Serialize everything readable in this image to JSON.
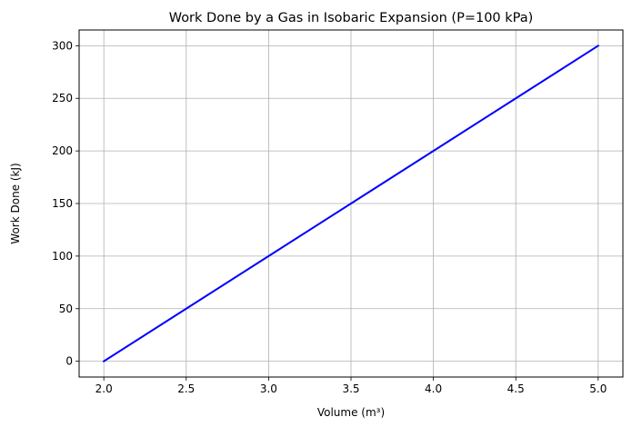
{
  "chart_data": {
    "type": "line",
    "title": "Work Done by a Gas in Isobaric Expansion (P=100 kPa)",
    "xlabel": "Volume (m³)",
    "ylabel": "Work Done (kJ)",
    "xlim": [
      1.85,
      5.15
    ],
    "ylim": [
      -15,
      315
    ],
    "xticks": [
      2.0,
      2.5,
      3.0,
      3.5,
      4.0,
      4.5,
      5.0
    ],
    "xtick_labels": [
      "2.0",
      "2.5",
      "3.0",
      "3.5",
      "4.0",
      "4.5",
      "5.0"
    ],
    "yticks": [
      0,
      50,
      100,
      150,
      200,
      250,
      300
    ],
    "ytick_labels": [
      "0",
      "50",
      "100",
      "150",
      "200",
      "250",
      "300"
    ],
    "grid": true,
    "legend": false,
    "series": [
      {
        "color": "#0000ff",
        "x": [
          2.0,
          2.5,
          3.0,
          3.5,
          4.0,
          4.5,
          5.0
        ],
        "y": [
          0,
          50,
          100,
          150,
          200,
          250,
          300
        ]
      }
    ]
  }
}
